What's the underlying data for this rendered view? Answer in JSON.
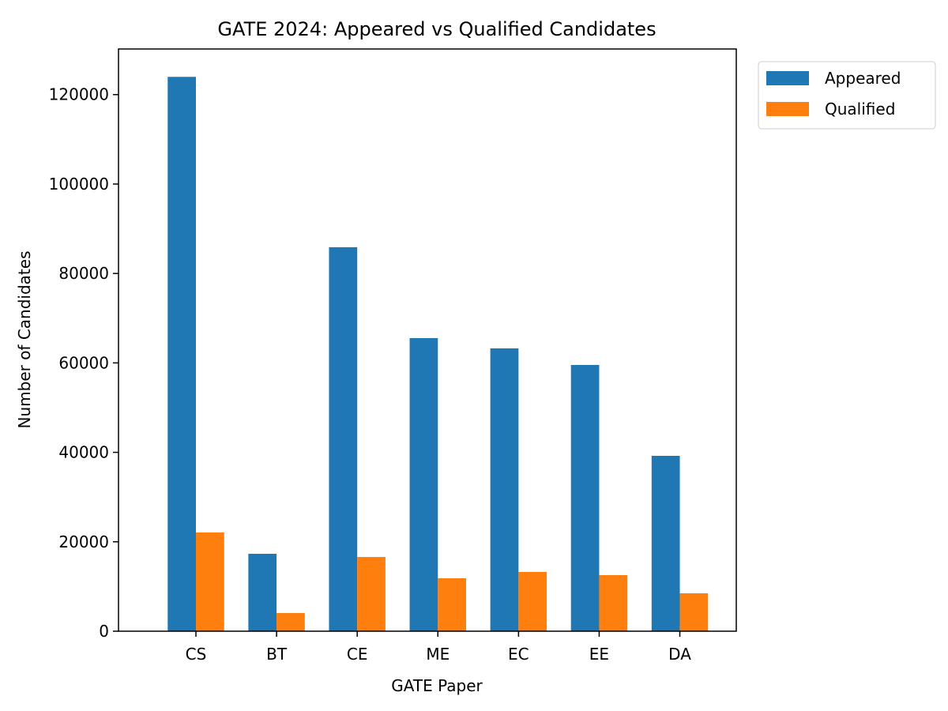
{
  "chart_data": {
    "type": "bar",
    "title": "GATE 2024: Appeared vs Qualified Candidates",
    "xlabel": "GATE Paper",
    "ylabel": "Number of Candidates",
    "categories": [
      "CS",
      "BT",
      "CE",
      "ME",
      "EC",
      "EE",
      "DA"
    ],
    "series": [
      {
        "name": "Appeared",
        "color": "#1f77b4",
        "values": [
          123967,
          17314,
          85870,
          65550,
          63250,
          59540,
          39220
        ]
      },
      {
        "name": "Qualified",
        "color": "#ff7f0e",
        "values": [
          22085,
          4060,
          16600,
          11840,
          13250,
          12540,
          8480
        ]
      }
    ],
    "ylim": [
      0,
      130200
    ],
    "yticks": [
      "0",
      "20000",
      "40000",
      "60000",
      "80000",
      "100000",
      "120000"
    ],
    "grid": false,
    "legend_position": "outside top-right"
  }
}
